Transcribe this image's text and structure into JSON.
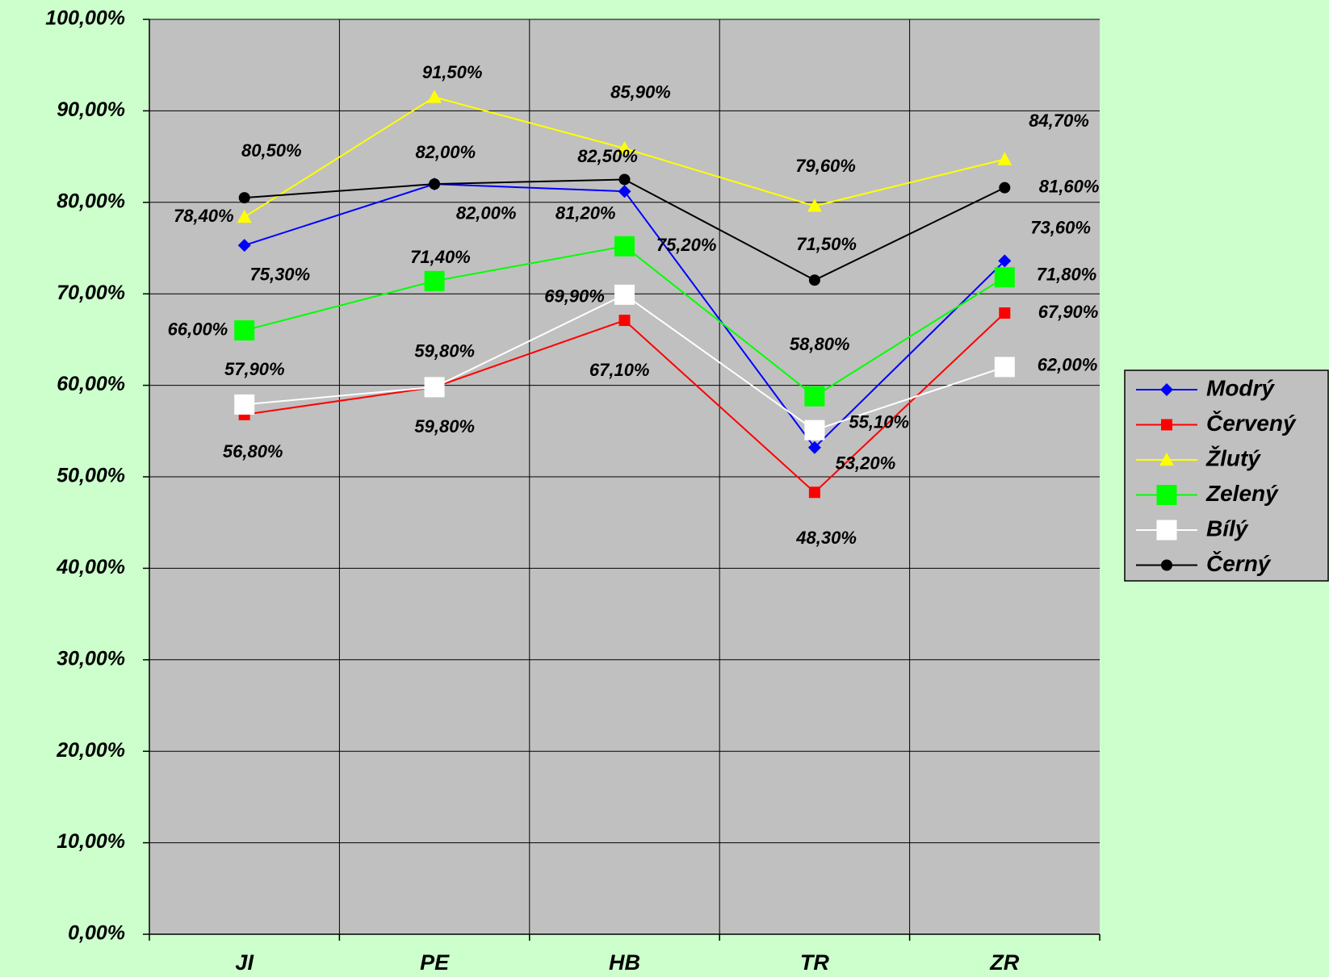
{
  "chart_data": {
    "type": "line",
    "categories": [
      "JI",
      "PE",
      "HB",
      "TR",
      "ZR"
    ],
    "ylim": [
      0,
      100
    ],
    "yticks": [
      {
        "value": 0,
        "label": "0,00%"
      },
      {
        "value": 10,
        "label": "10,00%"
      },
      {
        "value": 20,
        "label": "20,00%"
      },
      {
        "value": 30,
        "label": "30,00%"
      },
      {
        "value": 40,
        "label": "40,00%"
      },
      {
        "value": 50,
        "label": "50,00%"
      },
      {
        "value": 60,
        "label": "60,00%"
      },
      {
        "value": 70,
        "label": "70,00%"
      },
      {
        "value": 80,
        "label": "80,00%"
      },
      {
        "value": 90,
        "label": "90,00%"
      },
      {
        "value": 100,
        "label": "100,00%"
      }
    ],
    "grid": true,
    "legend": "right",
    "series": [
      {
        "name": "Modrý",
        "color": "#0000ff",
        "marker": "diamond",
        "values": [
          75.3,
          82.0,
          81.2,
          53.2,
          73.6
        ],
        "value_labels": [
          "75,30%",
          "82,00%",
          "81,20%",
          "53,20%",
          "73,60%"
        ]
      },
      {
        "name": "Červený",
        "color": "#ff0000",
        "marker": "square-small",
        "values": [
          56.8,
          59.8,
          67.1,
          48.3,
          67.9
        ],
        "value_labels": [
          "56,80%",
          "59,80%",
          "67,10%",
          "48,30%",
          "67,90%"
        ]
      },
      {
        "name": "Žlutý",
        "color": "#ffff00",
        "marker": "triangle",
        "values": [
          78.4,
          91.5,
          85.9,
          79.6,
          84.7
        ],
        "value_labels": [
          "78,40%",
          "91,50%",
          "85,90%",
          "79,60%",
          "84,70%"
        ]
      },
      {
        "name": "Zelený",
        "color": "#00ff00",
        "marker": "square",
        "values": [
          66.0,
          71.4,
          75.2,
          58.8,
          71.8
        ],
        "value_labels": [
          "66,00%",
          "71,40%",
          "75,20%",
          "58,80%",
          "71,80%"
        ]
      },
      {
        "name": "Bílý",
        "color": "#ffffff",
        "marker": "square",
        "values": [
          57.9,
          59.8,
          69.9,
          55.1,
          62.0
        ],
        "value_labels": [
          "57,90%",
          "59,80%",
          "69,90%",
          "55,10%",
          "62,00%"
        ]
      },
      {
        "name": "Černý",
        "color": "#000000",
        "marker": "circle",
        "values": [
          80.5,
          82.0,
          82.5,
          71.5,
          81.6
        ],
        "value_labels": [
          "80,50%",
          "82,00%",
          "82,50%",
          "71,50%",
          "81,60%"
        ]
      }
    ]
  }
}
